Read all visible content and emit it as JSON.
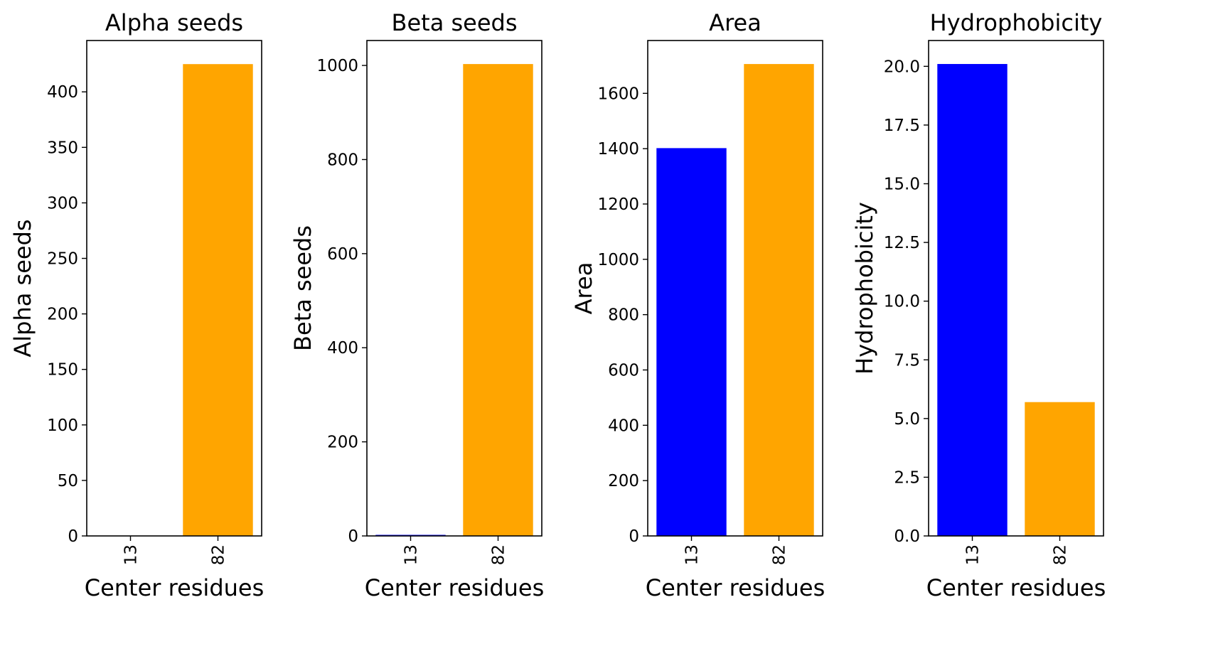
{
  "chart_data": [
    {
      "type": "bar",
      "title": "Alpha seeds",
      "xlabel": "Center residues",
      "ylabel": "Alpha seeds",
      "categories": [
        "13",
        "82"
      ],
      "values": [
        0,
        425
      ],
      "colors": [
        "#0000ff",
        "#ffa500"
      ],
      "ylim": [
        0,
        446.25
      ],
      "yticks": [
        0,
        50,
        100,
        150,
        200,
        250,
        300,
        350,
        400
      ]
    },
    {
      "type": "bar",
      "title": "Beta seeds",
      "xlabel": "Center residues",
      "ylabel": "Beta seeds",
      "categories": [
        "13",
        "82"
      ],
      "values": [
        2,
        1003
      ],
      "colors": [
        "#0000ff",
        "#ffa500"
      ],
      "ylim": [
        0,
        1053
      ],
      "yticks": [
        0,
        200,
        400,
        600,
        800,
        1000
      ]
    },
    {
      "type": "bar",
      "title": "Area",
      "xlabel": "Center residues",
      "ylabel": "Area",
      "categories": [
        "13",
        "82"
      ],
      "values": [
        1402,
        1706
      ],
      "colors": [
        "#0000ff",
        "#ffa500"
      ],
      "ylim": [
        0,
        1791
      ],
      "yticks": [
        0,
        200,
        400,
        600,
        800,
        1000,
        1200,
        1400,
        1600
      ]
    },
    {
      "type": "bar",
      "title": "Hydrophobicity",
      "xlabel": "Center residues",
      "ylabel": "Hydrophobicity",
      "categories": [
        "13",
        "82"
      ],
      "values": [
        20.1,
        5.7
      ],
      "colors": [
        "#0000ff",
        "#ffa500"
      ],
      "ylim": [
        0,
        21.1
      ],
      "yticks": [
        "0.0",
        "2.5",
        "5.0",
        "7.5",
        "10.0",
        "12.5",
        "15.0",
        "17.5",
        "20.0"
      ]
    }
  ]
}
